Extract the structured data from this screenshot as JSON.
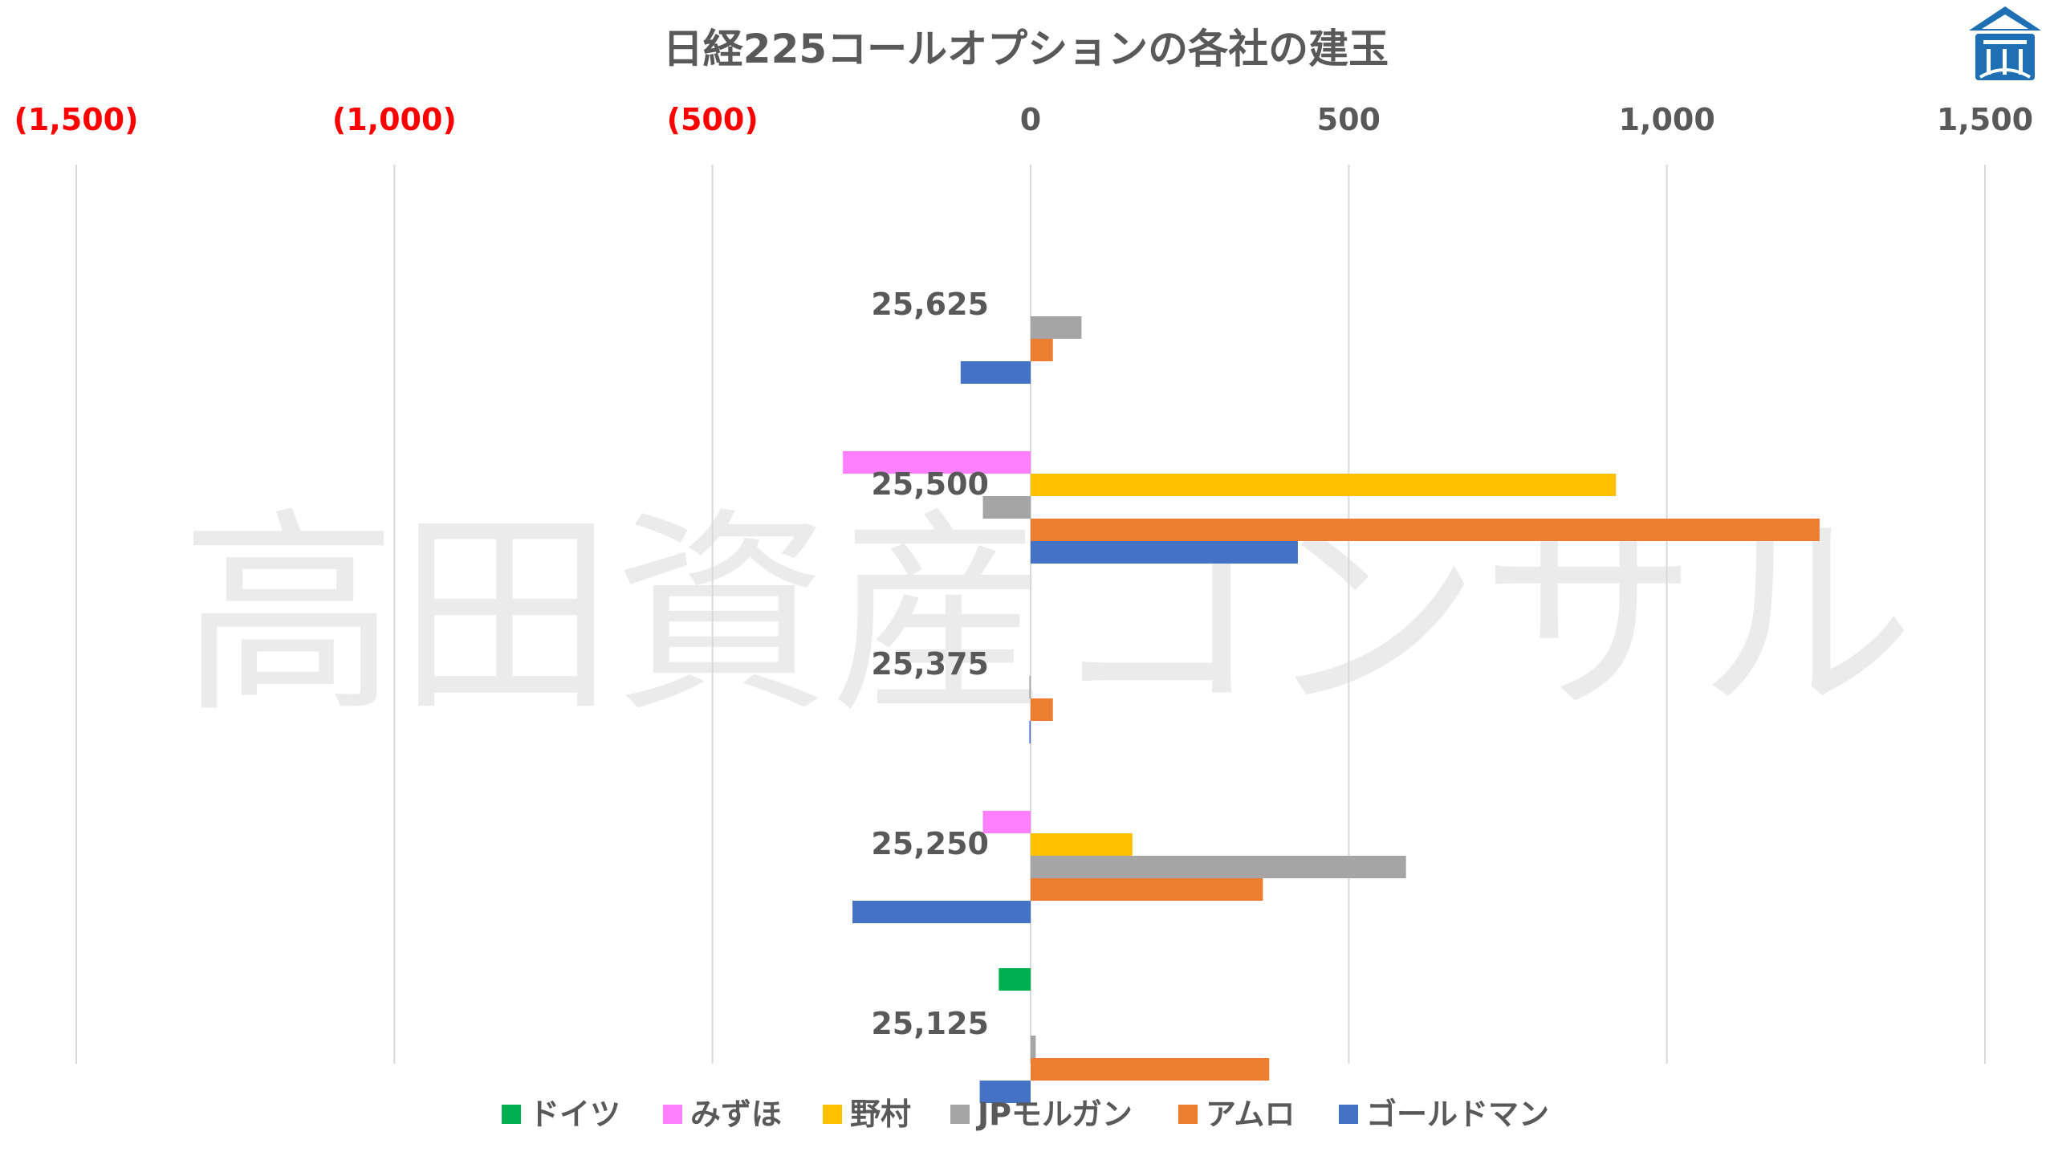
{
  "watermark": "高田資産コンサル",
  "logo": {
    "icon": "company-logo-icon",
    "color": "#1f6fb5"
  },
  "chart_data": {
    "type": "bar",
    "orientation": "horizontal",
    "title": "日経225コールオプションの各社の建玉",
    "xlim": [
      -1500,
      1500
    ],
    "xticks": [
      -1500,
      -1000,
      -500,
      0,
      500,
      1000,
      1500
    ],
    "xtick_labels": [
      "(1,500)",
      "(1,000)",
      "(500)",
      "0",
      "500",
      "1,000",
      "1,500"
    ],
    "negative_tick_color": "#ff0000",
    "positive_tick_color": "#595959",
    "xaxis_position": "top",
    "grid": true,
    "legend_position": "bottom",
    "categories": [
      "25,625",
      "25,500",
      "25,375",
      "25,250",
      "25,125"
    ],
    "series": [
      {
        "name": "ドイツ",
        "color": "#00b050",
        "values": [
          0,
          0,
          0,
          0,
          -50
        ]
      },
      {
        "name": "みずほ",
        "color": "#ff80ff",
        "values": [
          0,
          -295,
          0,
          -75,
          0
        ]
      },
      {
        "name": "野村",
        "color": "#ffc000",
        "values": [
          0,
          920,
          0,
          160,
          0
        ]
      },
      {
        "name": "JPモルガン",
        "color": "#a5a5a5",
        "values": [
          80,
          -75,
          -2,
          590,
          8
        ]
      },
      {
        "name": "アムロ",
        "color": "#ed7d31",
        "values": [
          35,
          1240,
          35,
          365,
          375
        ]
      },
      {
        "name": "ゴールドマン",
        "color": "#4472c4",
        "values": [
          -110,
          420,
          -2,
          -280,
          -80
        ]
      }
    ]
  }
}
